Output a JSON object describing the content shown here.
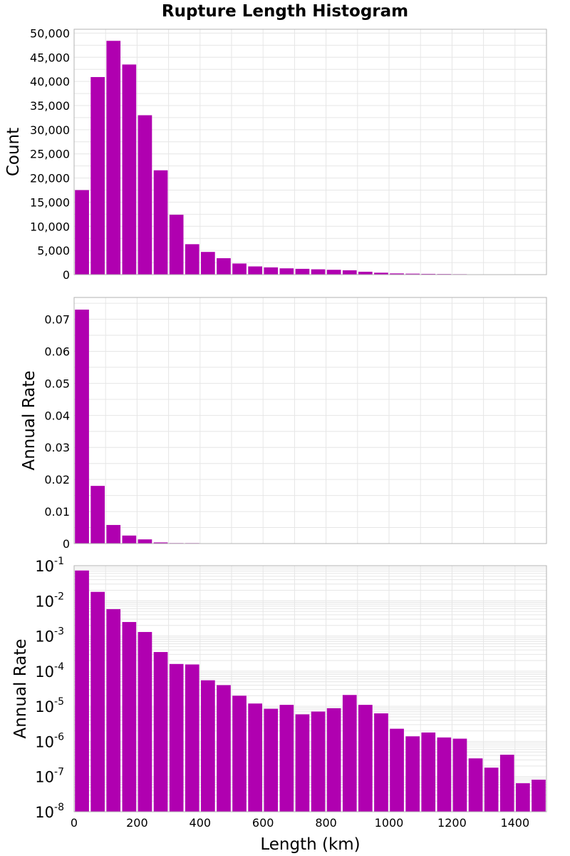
{
  "title": "Rupture Length Histogram",
  "colors": {
    "bar": "#b000b0",
    "grid": "#e6e6e6",
    "frame": "#b3b3b3"
  },
  "chart_data": [
    {
      "type": "bar",
      "x": [
        25,
        75,
        125,
        175,
        225,
        275,
        325,
        375,
        425,
        475,
        525,
        575,
        625,
        675,
        725,
        775,
        825,
        875,
        925,
        975,
        1025,
        1075,
        1125,
        1175,
        1225,
        1275,
        1325,
        1375,
        1425,
        1475
      ],
      "bin_width": 50,
      "values": [
        17500,
        40900,
        48400,
        43500,
        33000,
        21600,
        12400,
        6300,
        4700,
        3400,
        2300,
        1700,
        1500,
        1300,
        1200,
        1100,
        1000,
        900,
        600,
        400,
        250,
        200,
        160,
        130,
        100,
        70,
        40,
        25,
        10,
        5
      ],
      "xlabel": "",
      "ylabel": "Count",
      "xlim": [
        0,
        1500
      ],
      "ylim": [
        0,
        50800
      ],
      "yticks": [
        0,
        5000,
        10000,
        15000,
        20000,
        25000,
        30000,
        35000,
        40000,
        45000,
        50000
      ],
      "ytick_labels": [
        "0",
        "5,000",
        "10,000",
        "15,000",
        "20,000",
        "25,000",
        "30,000",
        "35,000",
        "40,000",
        "45,000",
        "50,000"
      ],
      "xticks": [
        0,
        200,
        400,
        600,
        800,
        1000,
        1200,
        1400
      ],
      "grid": true
    },
    {
      "type": "bar",
      "x": [
        25,
        75,
        125,
        175,
        225,
        275,
        325,
        375,
        425,
        475,
        525,
        575,
        625,
        675,
        725,
        775,
        825,
        875,
        925,
        975,
        1025,
        1075,
        1125,
        1175,
        1225,
        1275,
        1325,
        1375,
        1425,
        1475
      ],
      "bin_width": 50,
      "values": [
        0.073,
        0.018,
        0.0058,
        0.0025,
        0.0013,
        0.00035,
        0.00016,
        0.000155,
        5.5e-05,
        4e-05,
        2e-05,
        1.2e-05,
        8.5e-06,
        1.1e-05,
        5.9e-06,
        7.1e-06,
        8.8e-06,
        2.1e-05,
        1.1e-05,
        6.3e-06,
        2.3e-06,
        1.4e-06,
        1.8e-06,
        1.3e-06,
        1.2e-06,
        3.3e-07,
        1.8e-07,
        4.2e-07,
        6.5e-08,
        8.2e-08
      ],
      "xlabel": "",
      "ylabel": "Annual Rate",
      "xlim": [
        0,
        1500
      ],
      "ylim": [
        0,
        0.0768
      ],
      "yticks": [
        0,
        0.01,
        0.02,
        0.03,
        0.04,
        0.05,
        0.06,
        0.07
      ],
      "ytick_labels": [
        "0",
        "0.01",
        "0.02",
        "0.03",
        "0.04",
        "0.05",
        "0.06",
        "0.07"
      ],
      "xticks": [
        0,
        200,
        400,
        600,
        800,
        1000,
        1200,
        1400
      ],
      "grid": true
    },
    {
      "type": "bar",
      "yscale": "log",
      "x": [
        25,
        75,
        125,
        175,
        225,
        275,
        325,
        375,
        425,
        475,
        525,
        575,
        625,
        675,
        725,
        775,
        825,
        875,
        925,
        975,
        1025,
        1075,
        1125,
        1175,
        1225,
        1275,
        1325,
        1375,
        1425,
        1475
      ],
      "bin_width": 50,
      "values": [
        0.073,
        0.018,
        0.0058,
        0.0025,
        0.0013,
        0.00035,
        0.00016,
        0.000155,
        5.5e-05,
        4e-05,
        2e-05,
        1.2e-05,
        8.5e-06,
        1.1e-05,
        5.9e-06,
        7.1e-06,
        8.8e-06,
        2.1e-05,
        1.1e-05,
        6.3e-06,
        2.3e-06,
        1.4e-06,
        1.8e-06,
        1.3e-06,
        1.2e-06,
        3.3e-07,
        1.8e-07,
        4.2e-07,
        6.5e-08,
        8.2e-08
      ],
      "xlabel": "Length (km)",
      "ylabel": "Annual Rate",
      "xlim": [
        0,
        1500
      ],
      "ylim": [
        1e-08,
        0.1
      ],
      "yticks": [
        1e-08,
        1e-07,
        1e-06,
        1e-05,
        0.0001,
        0.001,
        0.01,
        0.1
      ],
      "ytick_exponents": [
        "-8",
        "-7",
        "-6",
        "-5",
        "-4",
        "-3",
        "-2",
        "-1"
      ],
      "xticks": [
        0,
        200,
        400,
        600,
        800,
        1000,
        1200,
        1400
      ],
      "xtick_labels": [
        "0",
        "200",
        "400",
        "600",
        "800",
        "1000",
        "1200",
        "1400"
      ],
      "grid": true
    }
  ]
}
